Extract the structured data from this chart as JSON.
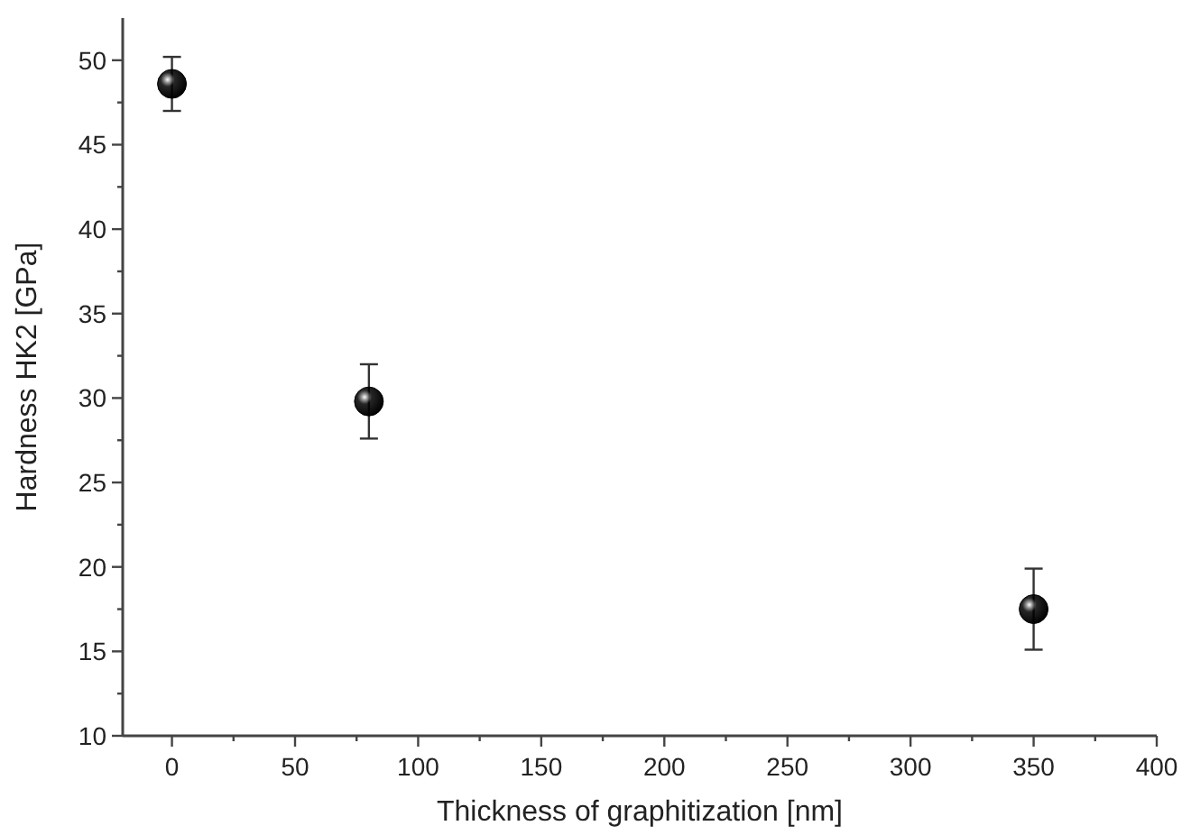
{
  "chart_data": {
    "type": "scatter",
    "xlabel": "Thickness of graphitization [nm]",
    "ylabel": "Hardness HK2 [GPa]",
    "x": [
      0,
      80,
      350
    ],
    "values": [
      48.6,
      29.8,
      17.5
    ],
    "errors": [
      [
        47.0,
        50.2
      ],
      [
        27.6,
        32.0
      ],
      [
        15.1,
        19.9
      ]
    ],
    "color": "#000000",
    "marker": "circle",
    "grid": false,
    "xlim": [
      -20,
      400
    ],
    "ylim": [
      10,
      52.5
    ],
    "xticks": [
      0,
      {
        "value": 25,
        "label": null
      },
      50,
      {
        "value": 75,
        "label": null
      },
      100,
      {
        "value": 125,
        "label": null
      },
      150,
      {
        "value": 175,
        "label": null
      },
      200,
      {
        "value": 225,
        "label": null
      },
      250,
      {
        "value": 275,
        "label": null
      },
      300,
      {
        "value": 325,
        "label": null
      },
      350,
      {
        "value": 375,
        "label": null
      },
      400
    ],
    "yticks": [
      10,
      {
        "value": 12.5,
        "label": null
      },
      15,
      {
        "value": 17.5,
        "label": null
      },
      20,
      {
        "value": 22.5,
        "label": null
      },
      25,
      {
        "value": 27.5,
        "label": null
      },
      30,
      {
        "value": 32.5,
        "label": null
      },
      35,
      {
        "value": 37.5,
        "label": null
      },
      40,
      {
        "value": 42.5,
        "label": null
      },
      45,
      {
        "value": 47.5,
        "label": null
      },
      50
    ]
  }
}
